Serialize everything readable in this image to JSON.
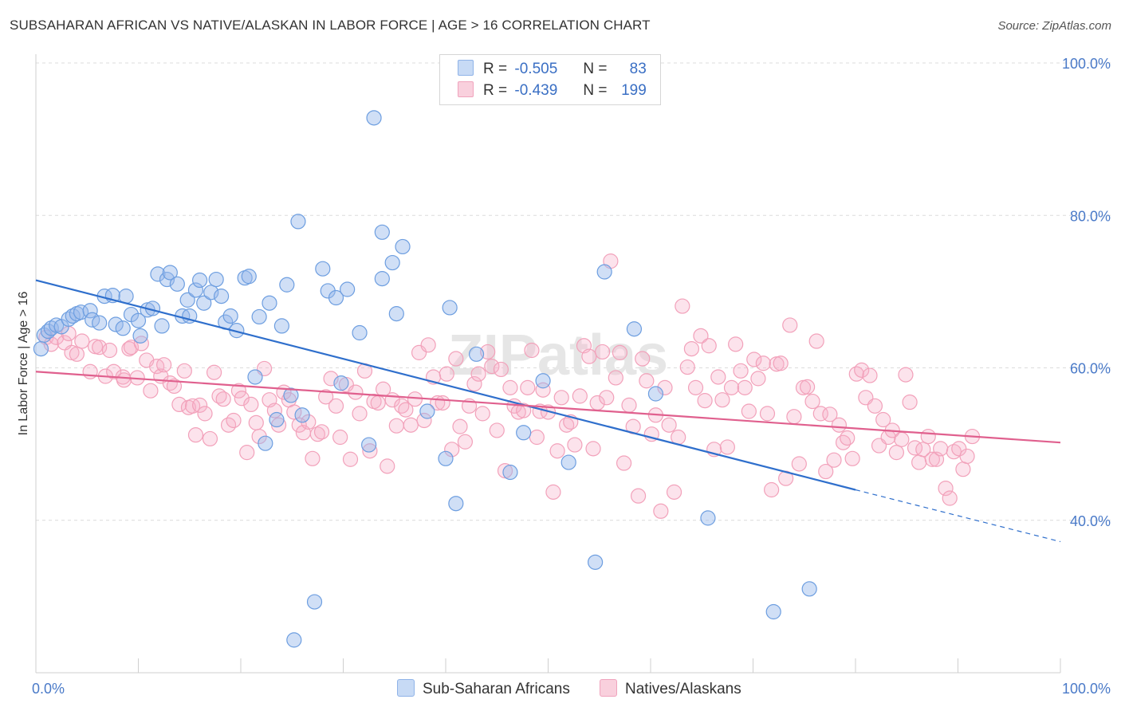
{
  "title": "SUBSAHARAN AFRICAN VS NATIVE/ALASKAN IN LABOR FORCE | AGE > 16 CORRELATION CHART",
  "source": "Source: ZipAtlas.com",
  "watermark": "ZIPatlas",
  "legend": {
    "r_label": "R =",
    "n_label": "N =",
    "rows": [
      {
        "r": "-0.505",
        "n": "83",
        "color": "#8fb3e8",
        "fill": "#c7daf5"
      },
      {
        "r": "-0.439",
        "n": "199",
        "color": "#f0a3bd",
        "fill": "#f9d0dd"
      }
    ]
  },
  "chart_data": {
    "type": "scatter",
    "title": "SUBSAHARAN AFRICAN VS NATIVE/ALASKAN IN LABOR FORCE | AGE > 16 CORRELATION CHART",
    "xlabel": "",
    "ylabel": "In Labor Force | Age > 16",
    "xlim": [
      0,
      100
    ],
    "ylim": [
      20,
      100
    ],
    "x_tick_labels": [
      {
        "value": 0,
        "label": "0.0%"
      },
      {
        "value": 100,
        "label": "100.0%"
      }
    ],
    "y_tick_labels": [
      {
        "value": 100,
        "label": "100.0%"
      },
      {
        "value": 80,
        "label": "80.0%"
      },
      {
        "value": 60,
        "label": "60.0%"
      },
      {
        "value": 40,
        "label": "40.0%"
      }
    ],
    "grid": "horizontal dashed",
    "legend_position": "top-center",
    "series": [
      {
        "name": "Sub-Saharan Africans",
        "color": "#6d9ee0",
        "trend": {
          "x0": 0,
          "y0": 71.5,
          "x1": 80,
          "y1": 44.0,
          "dashed_to": 100,
          "dashed_y": 37.2,
          "color": "#2f6fcc"
        },
        "points": [
          [
            0.5,
            62.5
          ],
          [
            0.8,
            64.3
          ],
          [
            1.2,
            64.8
          ],
          [
            1.5,
            65.2
          ],
          [
            2.0,
            65.6
          ],
          [
            2.5,
            65.4
          ],
          [
            3.2,
            66.4
          ],
          [
            3.6,
            66.8
          ],
          [
            4.0,
            67.1
          ],
          [
            4.4,
            67.3
          ],
          [
            5.3,
            67.5
          ],
          [
            5.5,
            66.3
          ],
          [
            6.2,
            65.9
          ],
          [
            6.7,
            69.4
          ],
          [
            7.5,
            69.5
          ],
          [
            7.8,
            65.7
          ],
          [
            8.5,
            65.2
          ],
          [
            8.8,
            69.4
          ],
          [
            9.3,
            67.0
          ],
          [
            10.0,
            66.2
          ],
          [
            10.2,
            64.2
          ],
          [
            10.9,
            67.6
          ],
          [
            11.4,
            67.8
          ],
          [
            11.9,
            72.3
          ],
          [
            12.3,
            65.5
          ],
          [
            12.8,
            71.6
          ],
          [
            13.1,
            72.5
          ],
          [
            13.8,
            71.0
          ],
          [
            14.3,
            66.8
          ],
          [
            14.8,
            68.9
          ],
          [
            15.0,
            66.8
          ],
          [
            15.6,
            70.2
          ],
          [
            16.0,
            71.5
          ],
          [
            16.4,
            68.5
          ],
          [
            17.1,
            69.9
          ],
          [
            17.6,
            71.6
          ],
          [
            18.1,
            69.4
          ],
          [
            18.5,
            66.0
          ],
          [
            19.0,
            66.8
          ],
          [
            19.6,
            64.9
          ],
          [
            20.4,
            71.8
          ],
          [
            20.8,
            72.0
          ],
          [
            21.4,
            58.8
          ],
          [
            21.8,
            66.7
          ],
          [
            22.4,
            50.1
          ],
          [
            22.8,
            68.5
          ],
          [
            23.5,
            53.2
          ],
          [
            24.0,
            65.5
          ],
          [
            24.5,
            70.9
          ],
          [
            24.9,
            56.4
          ],
          [
            25.2,
            24.3
          ],
          [
            25.6,
            79.2
          ],
          [
            26.0,
            53.8
          ],
          [
            27.2,
            29.3
          ],
          [
            28.0,
            73.0
          ],
          [
            28.5,
            70.1
          ],
          [
            29.3,
            69.2
          ],
          [
            29.8,
            58.0
          ],
          [
            30.4,
            70.3
          ],
          [
            31.6,
            64.6
          ],
          [
            32.5,
            49.9
          ],
          [
            33.0,
            92.8
          ],
          [
            33.8,
            77.8
          ],
          [
            33.8,
            71.7
          ],
          [
            34.8,
            73.8
          ],
          [
            35.2,
            67.1
          ],
          [
            35.8,
            75.9
          ],
          [
            38.2,
            54.3
          ],
          [
            40.0,
            48.1
          ],
          [
            40.4,
            67.9
          ],
          [
            41.0,
            42.2
          ],
          [
            43.0,
            61.8
          ],
          [
            46.3,
            46.3
          ],
          [
            47.6,
            51.5
          ],
          [
            49.5,
            58.3
          ],
          [
            52.0,
            47.6
          ],
          [
            54.6,
            34.5
          ],
          [
            55.5,
            72.6
          ],
          [
            58.4,
            65.1
          ],
          [
            60.5,
            56.6
          ],
          [
            65.6,
            40.3
          ],
          [
            72.0,
            28.0
          ],
          [
            75.5,
            31.0
          ]
        ]
      },
      {
        "name": "Natives/Alaskans",
        "color": "#f2a1ba",
        "trend": {
          "x0": 0,
          "y0": 59.5,
          "x1": 100,
          "y1": 50.2,
          "color": "#e0608e"
        },
        "points": [
          [
            1.0,
            64.0
          ],
          [
            1.5,
            63.1
          ],
          [
            2.0,
            64.0
          ],
          [
            2.8,
            63.3
          ],
          [
            3.2,
            64.5
          ],
          [
            3.5,
            62.0
          ],
          [
            4.0,
            61.8
          ],
          [
            4.5,
            63.5
          ],
          [
            5.3,
            59.5
          ],
          [
            5.8,
            62.8
          ],
          [
            6.2,
            62.7
          ],
          [
            6.8,
            58.9
          ],
          [
            7.2,
            62.3
          ],
          [
            7.6,
            59.5
          ],
          [
            8.5,
            58.8
          ],
          [
            8.6,
            58.4
          ],
          [
            9.1,
            62.5
          ],
          [
            9.3,
            62.7
          ],
          [
            9.9,
            58.7
          ],
          [
            10.3,
            63.2
          ],
          [
            10.8,
            61.0
          ],
          [
            11.2,
            57.0
          ],
          [
            11.8,
            60.2
          ],
          [
            12.2,
            58.9
          ],
          [
            12.5,
            60.4
          ],
          [
            13.1,
            58.0
          ],
          [
            13.5,
            57.6
          ],
          [
            14.0,
            55.2
          ],
          [
            14.5,
            59.6
          ],
          [
            14.9,
            54.8
          ],
          [
            15.3,
            55.0
          ],
          [
            15.6,
            51.2
          ],
          [
            16.0,
            55.1
          ],
          [
            16.5,
            54.0
          ],
          [
            17.0,
            50.7
          ],
          [
            17.4,
            59.4
          ],
          [
            17.9,
            56.3
          ],
          [
            18.3,
            55.9
          ],
          [
            18.8,
            52.5
          ],
          [
            19.3,
            53.1
          ],
          [
            19.8,
            57.0
          ],
          [
            20.1,
            56.0
          ],
          [
            20.6,
            48.9
          ],
          [
            21.0,
            55.2
          ],
          [
            21.5,
            52.8
          ],
          [
            21.8,
            51.0
          ],
          [
            22.3,
            59.9
          ],
          [
            22.8,
            55.8
          ],
          [
            23.3,
            54.4
          ],
          [
            23.7,
            52.5
          ],
          [
            24.2,
            56.8
          ],
          [
            24.7,
            55.8
          ],
          [
            25.2,
            54.2
          ],
          [
            25.7,
            52.5
          ],
          [
            26.1,
            51.5
          ],
          [
            26.6,
            52.9
          ],
          [
            27.0,
            48.1
          ],
          [
            27.5,
            51.3
          ],
          [
            27.9,
            51.6
          ],
          [
            28.3,
            56.2
          ],
          [
            28.8,
            58.6
          ],
          [
            29.3,
            55.0
          ],
          [
            29.7,
            50.9
          ],
          [
            30.3,
            57.8
          ],
          [
            30.7,
            48.0
          ],
          [
            31.2,
            56.8
          ],
          [
            31.6,
            54.0
          ],
          [
            32.1,
            59.6
          ],
          [
            32.6,
            49.1
          ],
          [
            33.0,
            55.6
          ],
          [
            33.4,
            55.4
          ],
          [
            33.9,
            57.2
          ],
          [
            34.3,
            47.1
          ],
          [
            34.8,
            55.8
          ],
          [
            35.2,
            52.4
          ],
          [
            35.7,
            55.0
          ],
          [
            36.1,
            54.5
          ],
          [
            36.6,
            52.5
          ],
          [
            37.0,
            55.9
          ],
          [
            37.4,
            62.0
          ],
          [
            37.9,
            53.1
          ],
          [
            38.3,
            63.0
          ],
          [
            38.8,
            58.8
          ],
          [
            39.2,
            55.4
          ],
          [
            39.7,
            55.4
          ],
          [
            40.1,
            59.2
          ],
          [
            40.6,
            49.3
          ],
          [
            41.0,
            61.2
          ],
          [
            41.4,
            52.3
          ],
          [
            41.9,
            50.3
          ],
          [
            42.3,
            55.0
          ],
          [
            42.8,
            57.9
          ],
          [
            43.2,
            59.2
          ],
          [
            43.6,
            54.0
          ],
          [
            44.1,
            62.1
          ],
          [
            44.5,
            60.2
          ],
          [
            45.0,
            51.8
          ],
          [
            45.4,
            59.8
          ],
          [
            45.8,
            46.5
          ],
          [
            46.3,
            57.4
          ],
          [
            46.7,
            55.0
          ],
          [
            47.1,
            54.2
          ],
          [
            47.6,
            54.4
          ],
          [
            48.0,
            57.4
          ],
          [
            48.4,
            62.3
          ],
          [
            48.9,
            50.9
          ],
          [
            49.2,
            54.3
          ],
          [
            49.5,
            57.1
          ],
          [
            50.0,
            54.2
          ],
          [
            50.5,
            43.7
          ],
          [
            50.9,
            49.1
          ],
          [
            51.3,
            56.1
          ],
          [
            51.8,
            52.5
          ],
          [
            52.2,
            52.9
          ],
          [
            52.6,
            49.9
          ],
          [
            53.1,
            56.3
          ],
          [
            53.5,
            62.9
          ],
          [
            54.0,
            61.5
          ],
          [
            54.4,
            49.4
          ],
          [
            54.8,
            55.4
          ],
          [
            55.3,
            62.1
          ],
          [
            55.7,
            56.1
          ],
          [
            56.1,
            74.0
          ],
          [
            56.6,
            58.7
          ],
          [
            57.0,
            62.0
          ],
          [
            57.4,
            47.5
          ],
          [
            57.9,
            55.1
          ],
          [
            58.3,
            52.3
          ],
          [
            58.8,
            43.2
          ],
          [
            59.2,
            61.2
          ],
          [
            59.6,
            58.3
          ],
          [
            60.1,
            51.3
          ],
          [
            60.5,
            53.8
          ],
          [
            61.0,
            41.2
          ],
          [
            61.4,
            57.4
          ],
          [
            61.8,
            52.5
          ],
          [
            62.3,
            43.7
          ],
          [
            62.7,
            50.9
          ],
          [
            63.1,
            68.1
          ],
          [
            63.6,
            60.1
          ],
          [
            64.0,
            62.5
          ],
          [
            64.4,
            57.4
          ],
          [
            64.9,
            64.2
          ],
          [
            65.3,
            55.7
          ],
          [
            65.7,
            62.9
          ],
          [
            66.2,
            49.3
          ],
          [
            66.6,
            58.8
          ],
          [
            67.0,
            55.8
          ],
          [
            67.5,
            49.6
          ],
          [
            67.9,
            57.4
          ],
          [
            68.3,
            63.1
          ],
          [
            68.8,
            59.6
          ],
          [
            69.2,
            57.4
          ],
          [
            69.6,
            54.3
          ],
          [
            70.1,
            61.1
          ],
          [
            70.5,
            58.6
          ],
          [
            71.0,
            60.6
          ],
          [
            71.4,
            54.0
          ],
          [
            71.8,
            44.0
          ],
          [
            72.3,
            60.5
          ],
          [
            72.7,
            60.6
          ],
          [
            73.2,
            45.5
          ],
          [
            73.6,
            65.6
          ],
          [
            74.0,
            53.6
          ],
          [
            74.5,
            47.4
          ],
          [
            74.9,
            57.4
          ],
          [
            75.3,
            57.5
          ],
          [
            75.8,
            55.6
          ],
          [
            76.2,
            63.5
          ],
          [
            76.6,
            54.0
          ],
          [
            77.1,
            46.4
          ],
          [
            77.5,
            53.9
          ],
          [
            77.9,
            47.9
          ],
          [
            78.4,
            52.5
          ],
          [
            78.8,
            50.2
          ],
          [
            79.2,
            50.8
          ],
          [
            79.7,
            48.1
          ],
          [
            80.1,
            59.2
          ],
          [
            80.6,
            59.7
          ],
          [
            81.0,
            56.1
          ],
          [
            81.4,
            59.0
          ],
          [
            81.9,
            55.0
          ],
          [
            82.3,
            49.8
          ],
          [
            82.7,
            53.2
          ],
          [
            83.2,
            50.9
          ],
          [
            83.6,
            51.8
          ],
          [
            84.0,
            48.9
          ],
          [
            84.5,
            50.6
          ],
          [
            84.9,
            59.1
          ],
          [
            85.3,
            55.5
          ],
          [
            85.8,
            49.5
          ],
          [
            86.2,
            47.6
          ],
          [
            86.6,
            49.3
          ],
          [
            87.1,
            51.0
          ],
          [
            87.5,
            48.0
          ],
          [
            87.9,
            48.0
          ],
          [
            88.3,
            49.4
          ],
          [
            88.8,
            44.2
          ],
          [
            89.2,
            42.9
          ],
          [
            89.6,
            49.0
          ],
          [
            90.1,
            49.4
          ],
          [
            90.5,
            46.7
          ],
          [
            90.9,
            48.4
          ],
          [
            91.4,
            51.0
          ]
        ]
      }
    ]
  },
  "bottom_legend": [
    {
      "label": "Sub-Saharan Africans",
      "color": "#8fb3e8",
      "fill": "#c7daf5"
    },
    {
      "label": "Natives/Alaskans",
      "color": "#f0a3bd",
      "fill": "#f9d0dd"
    }
  ]
}
